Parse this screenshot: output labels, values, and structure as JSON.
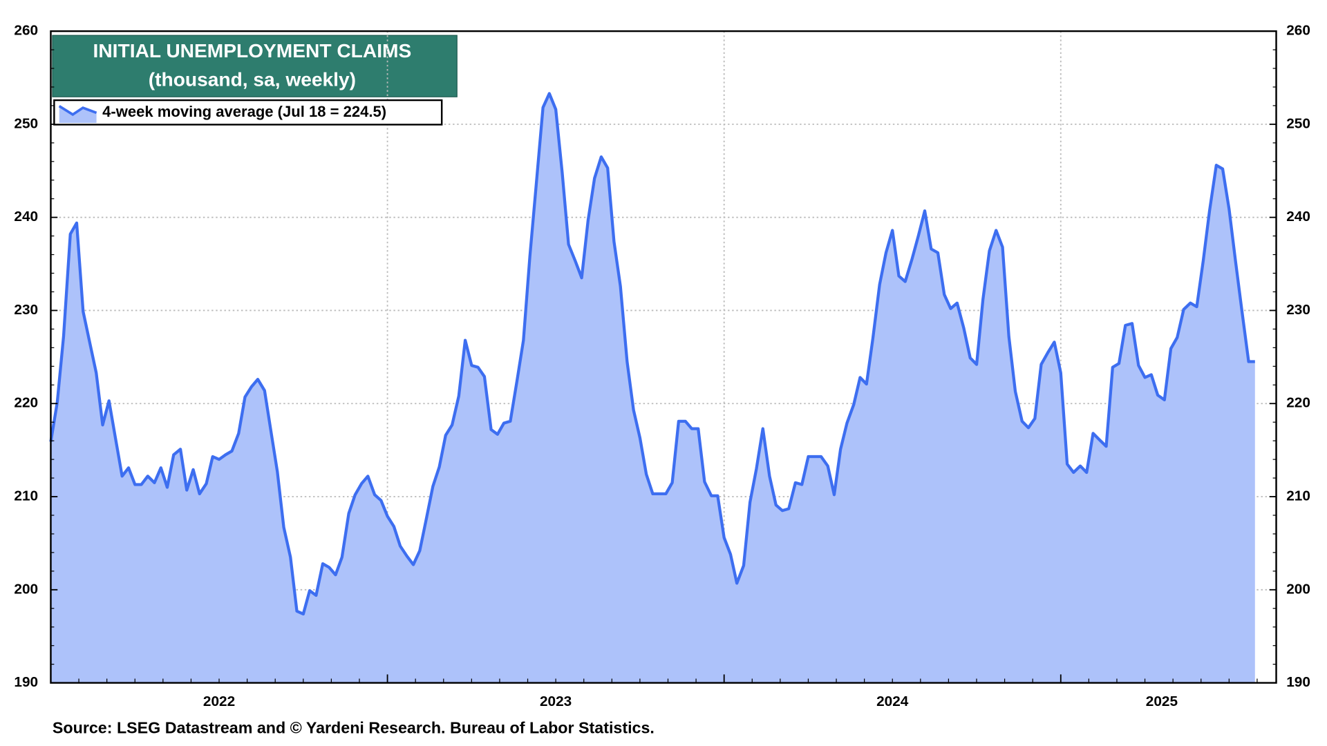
{
  "chart_data": {
    "type": "area",
    "title": "INITIAL UNEMPLOYMENT CLAIMS",
    "subtitle": "(thousand, sa, weekly)",
    "source": "Source: LSEG Datastream and © Yardeni Research. Bureau of Labor Statistics.",
    "x": [
      2022.0,
      2022.019,
      2022.038,
      2022.058,
      2022.077,
      2022.096,
      2022.115,
      2022.135,
      2022.154,
      2022.173,
      2022.192,
      2022.212,
      2022.231,
      2022.25,
      2022.269,
      2022.288,
      2022.308,
      2022.327,
      2022.346,
      2022.365,
      2022.385,
      2022.404,
      2022.423,
      2022.442,
      2022.462,
      2022.481,
      2022.5,
      2022.519,
      2022.538,
      2022.558,
      2022.577,
      2022.596,
      2022.615,
      2022.635,
      2022.654,
      2022.673,
      2022.692,
      2022.712,
      2022.731,
      2022.75,
      2022.769,
      2022.788,
      2022.808,
      2022.827,
      2022.846,
      2022.865,
      2022.885,
      2022.904,
      2022.923,
      2022.942,
      2022.962,
      2022.981,
      2023.0,
      2023.019,
      2023.038,
      2023.058,
      2023.077,
      2023.096,
      2023.115,
      2023.135,
      2023.154,
      2023.173,
      2023.192,
      2023.212,
      2023.231,
      2023.25,
      2023.269,
      2023.288,
      2023.308,
      2023.327,
      2023.346,
      2023.365,
      2023.385,
      2023.404,
      2023.423,
      2023.442,
      2023.462,
      2023.481,
      2023.5,
      2023.519,
      2023.538,
      2023.558,
      2023.577,
      2023.596,
      2023.615,
      2023.635,
      2023.654,
      2023.673,
      2023.692,
      2023.712,
      2023.731,
      2023.75,
      2023.769,
      2023.788,
      2023.808,
      2023.827,
      2023.846,
      2023.865,
      2023.885,
      2023.904,
      2023.923,
      2023.942,
      2023.962,
      2023.981,
      2024.0,
      2024.019,
      2024.038,
      2024.058,
      2024.077,
      2024.096,
      2024.115,
      2024.135,
      2024.154,
      2024.173,
      2024.192,
      2024.212,
      2024.231,
      2024.25,
      2024.269,
      2024.288,
      2024.308,
      2024.327,
      2024.346,
      2024.365,
      2024.385,
      2024.404,
      2024.423,
      2024.442,
      2024.462,
      2024.481,
      2024.5,
      2024.519,
      2024.538,
      2024.558,
      2024.577,
      2024.596,
      2024.615,
      2024.635,
      2024.654,
      2024.673,
      2024.692,
      2024.712,
      2024.731,
      2024.75,
      2024.769,
      2024.788,
      2024.808,
      2024.827,
      2024.846,
      2024.865,
      2024.885,
      2024.904,
      2024.923,
      2024.942,
      2024.962,
      2024.981,
      2025.0,
      2025.019,
      2025.038,
      2025.058,
      2025.077,
      2025.096,
      2025.115,
      2025.135,
      2025.154,
      2025.173,
      2025.192,
      2025.212,
      2025.231,
      2025.25,
      2025.269,
      2025.288,
      2025.308,
      2025.327,
      2025.346,
      2025.365,
      2025.385,
      2025.404,
      2025.423,
      2025.442,
      2025.462,
      2025.481,
      2025.5,
      2025.519,
      2025.538,
      2025.558,
      2025.577
    ],
    "series": [
      {
        "name": "4-week moving average (Jul 18 = 224.5)",
        "color": "#3d6ef0",
        "fill": "#adc2fa",
        "values": [
          215.9,
          220.1,
          227.2,
          238.2,
          239.4,
          229.9,
          226.7,
          223.3,
          217.7,
          220.3,
          216.3,
          212.2,
          213.1,
          211.3,
          211.3,
          212.2,
          211.5,
          213.1,
          211.0,
          214.5,
          215.1,
          210.7,
          212.9,
          210.3,
          211.4,
          214.3,
          214.0,
          214.5,
          214.9,
          216.8,
          220.7,
          221.8,
          222.6,
          221.4,
          217.0,
          212.7,
          206.7,
          203.5,
          197.7,
          197.4,
          199.9,
          199.4,
          202.8,
          202.4,
          201.6,
          203.5,
          208.2,
          210.2,
          211.4,
          212.2,
          210.2,
          209.6,
          207.9,
          206.8,
          204.7,
          203.6,
          202.7,
          204.2,
          207.5,
          211.1,
          213.2,
          216.6,
          217.7,
          220.8,
          226.8,
          224.1,
          223.9,
          222.9,
          217.2,
          216.7,
          217.9,
          218.1,
          222.5,
          226.8,
          235.8,
          243.5,
          251.8,
          253.3,
          251.6,
          244.8,
          237.1,
          235.3,
          233.5,
          239.7,
          244.2,
          246.5,
          245.3,
          237.4,
          232.6,
          224.5,
          219.3,
          216.3,
          212.4,
          210.3,
          210.3,
          210.3,
          211.5,
          218.1,
          218.1,
          217.3,
          217.3,
          211.6,
          210.1,
          210.1,
          205.6,
          203.8,
          200.7,
          202.6,
          209.4,
          213.0,
          217.3,
          212.2,
          209.1,
          208.5,
          208.7,
          211.5,
          211.3,
          214.3,
          214.3,
          214.3,
          213.3,
          210.2,
          215.1,
          217.9,
          219.9,
          222.8,
          222.1,
          227.0,
          232.8,
          236.2,
          238.6,
          233.7,
          233.1,
          235.5,
          238.0,
          240.7,
          236.6,
          236.2,
          231.7,
          230.2,
          230.8,
          228.1,
          224.9,
          224.2,
          231.2,
          236.4,
          238.6,
          236.8,
          227.2,
          221.3,
          218.1,
          217.4,
          218.4,
          224.2,
          225.5,
          226.6,
          223.3,
          213.5,
          212.6,
          213.3,
          212.6,
          216.8,
          216.1,
          215.4,
          223.9,
          224.3,
          228.4,
          228.6,
          224.1,
          222.8,
          223.1,
          220.9,
          220.4,
          225.9,
          227.1,
          230.1,
          230.8,
          230.4,
          235.3,
          240.7,
          245.6,
          245.2,
          240.9,
          235.3,
          230.0,
          224.5,
          224.5
        ]
      }
    ],
    "xlim": [
      2022,
      2025.64
    ],
    "xticks": [
      {
        "value": 2022.5,
        "label": "2022"
      },
      {
        "value": 2023.5,
        "label": "2023"
      },
      {
        "value": 2024.5,
        "label": "2024"
      },
      {
        "value": 2025.3,
        "label": "2025"
      }
    ],
    "ylim": [
      190,
      260
    ],
    "yticks": [
      190,
      200,
      210,
      220,
      230,
      240,
      250,
      260
    ],
    "y2lim": [
      190,
      260
    ],
    "y2ticks": [
      190,
      200,
      210,
      220,
      230,
      240,
      250,
      260
    ],
    "grid": true
  }
}
